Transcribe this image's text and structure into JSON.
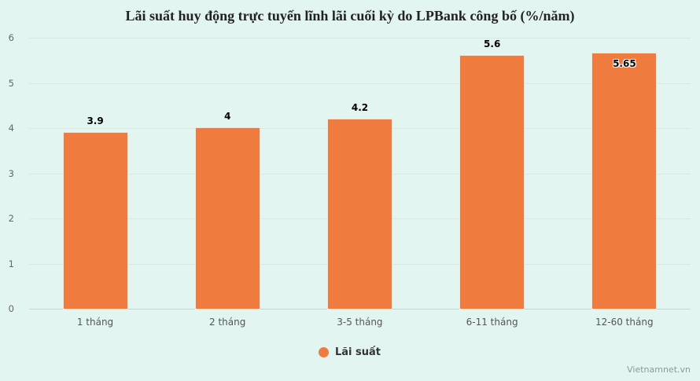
{
  "chart_data": {
    "type": "bar",
    "title": "Lãi suất huy động trực tuyến lĩnh lãi cuối kỳ do LPBank công bố (%/năm)",
    "categories": [
      "1 tháng",
      "2 tháng",
      "3-5 tháng",
      "6-11 tháng",
      "12-60 tháng"
    ],
    "series": [
      {
        "name": "Lãi suất",
        "values": [
          3.9,
          4,
          4.2,
          5.6,
          5.65
        ],
        "color": "#f07b3f"
      }
    ],
    "data_labels": [
      "3.9",
      "4",
      "4.2",
      "5.6",
      "5.65"
    ],
    "xlabel": "",
    "ylabel": "",
    "ylim": [
      0,
      6
    ],
    "yticks": [
      "0",
      "1",
      "2",
      "3",
      "4",
      "5",
      "6"
    ],
    "grid": true,
    "legend_position": "bottom"
  },
  "legend": {
    "label": "Lãi suất"
  },
  "credit": "Vietnamnet.vn",
  "colors": {
    "background": "#e3f5f1",
    "bar": "#f07b3f"
  }
}
